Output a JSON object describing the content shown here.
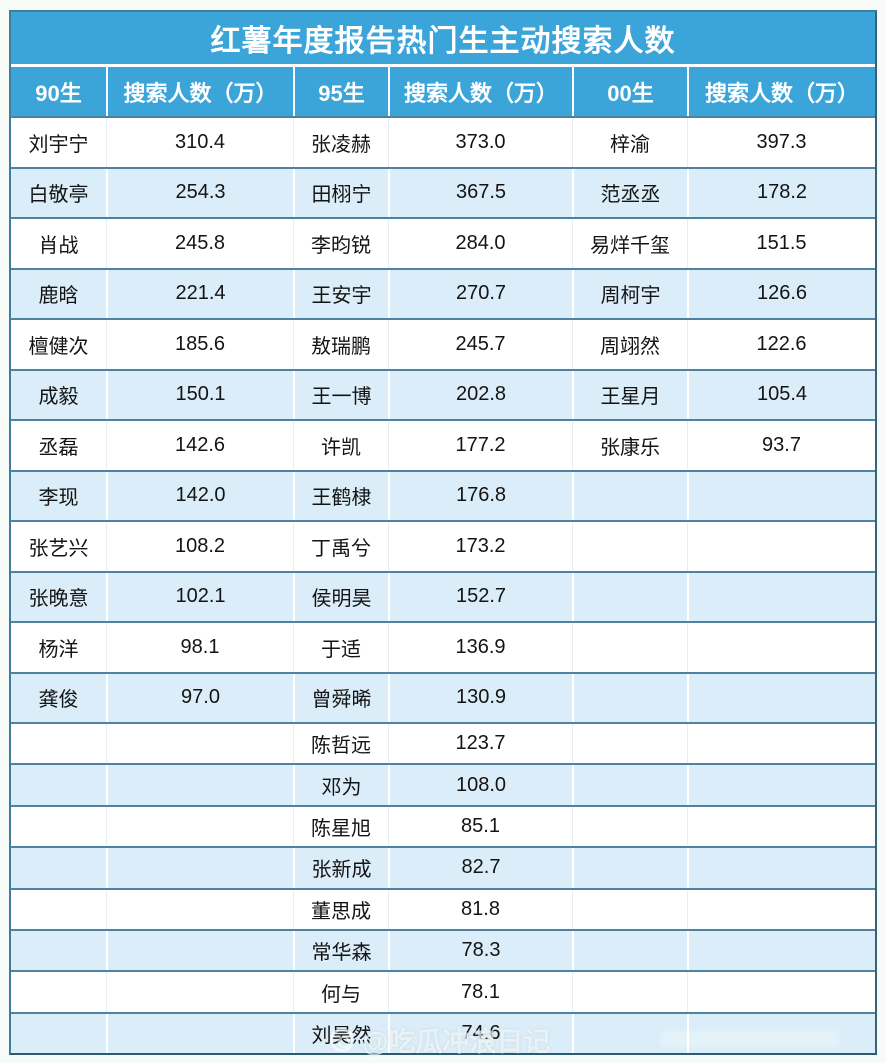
{
  "colors": {
    "header_blue": "#3BA4D9",
    "row_alt_blue": "#DAEDF8",
    "row_white": "#FFFFFF",
    "row_divider": "#4D82A0",
    "outer_border": "#35637A",
    "title_text": "#FFFFFF",
    "cell_text": "#141414"
  },
  "watermark": {
    "icon": "camera-circle-icon",
    "handle": "@吃瓜冲浪日记"
  },
  "chart_data": {
    "type": "table",
    "title": "红薯年度报告热门生主动搜索人数",
    "headers": [
      "90生",
      "搜索人数（万）",
      "95生",
      "搜索人数（万）",
      "00生",
      "搜索人数（万）"
    ],
    "unit": "万",
    "rows": [
      [
        "刘宇宁",
        "310.4",
        "张凌赫",
        "373.0",
        "梓渝",
        "397.3"
      ],
      [
        "白敬亭",
        "254.3",
        "田栩宁",
        "367.5",
        "范丞丞",
        "178.2"
      ],
      [
        "肖战",
        "245.8",
        "李昀锐",
        "284.0",
        "易烊千玺",
        "151.5"
      ],
      [
        "鹿晗",
        "221.4",
        "王安宇",
        "270.7",
        "周柯宇",
        "126.6"
      ],
      [
        "檀健次",
        "185.6",
        "敖瑞鹏",
        "245.7",
        "周翊然",
        "122.6"
      ],
      [
        "成毅",
        "150.1",
        "王一博",
        "202.8",
        "王星月",
        "105.4"
      ],
      [
        "丞磊",
        "142.6",
        "许凯",
        "177.2",
        "张康乐",
        "93.7"
      ],
      [
        "李现",
        "142.0",
        "王鹤棣",
        "176.8",
        "",
        ""
      ],
      [
        "张艺兴",
        "108.2",
        "丁禹兮",
        "173.2",
        "",
        ""
      ],
      [
        "张晚意",
        "102.1",
        "侯明昊",
        "152.7",
        "",
        ""
      ],
      [
        "杨洋",
        "98.1",
        "于适",
        "136.9",
        "",
        ""
      ],
      [
        "龚俊",
        "97.0",
        "曾舜晞",
        "130.9",
        "",
        ""
      ],
      [
        "",
        "",
        "陈哲远",
        "123.7",
        "",
        ""
      ],
      [
        "",
        "",
        "邓为",
        "108.0",
        "",
        ""
      ],
      [
        "",
        "",
        "陈星旭",
        "85.1",
        "",
        ""
      ],
      [
        "",
        "",
        "张新成",
        "82.7",
        "",
        ""
      ],
      [
        "",
        "",
        "董思成",
        "81.8",
        "",
        ""
      ],
      [
        "",
        "",
        "常华森",
        "78.3",
        "",
        ""
      ],
      [
        "",
        "",
        "何与",
        "78.1",
        "",
        ""
      ],
      [
        "",
        "",
        "刘昊然",
        "74.6",
        "",
        ""
      ]
    ],
    "series": [
      {
        "name": "90生",
        "unit": "万",
        "data": [
          {
            "label": "刘宇宁",
            "value": 310.4
          },
          {
            "label": "白敬亭",
            "value": 254.3
          },
          {
            "label": "肖战",
            "value": 245.8
          },
          {
            "label": "鹿晗",
            "value": 221.4
          },
          {
            "label": "檀健次",
            "value": 185.6
          },
          {
            "label": "成毅",
            "value": 150.1
          },
          {
            "label": "丞磊",
            "value": 142.6
          },
          {
            "label": "李现",
            "value": 142.0
          },
          {
            "label": "张艺兴",
            "value": 108.2
          },
          {
            "label": "张晚意",
            "value": 102.1
          },
          {
            "label": "杨洋",
            "value": 98.1
          },
          {
            "label": "龚俊",
            "value": 97.0
          }
        ]
      },
      {
        "name": "95生",
        "unit": "万",
        "data": [
          {
            "label": "张凌赫",
            "value": 373.0
          },
          {
            "label": "田栩宁",
            "value": 367.5
          },
          {
            "label": "李昀锐",
            "value": 284.0
          },
          {
            "label": "王安宇",
            "value": 270.7
          },
          {
            "label": "敖瑞鹏",
            "value": 245.7
          },
          {
            "label": "王一博",
            "value": 202.8
          },
          {
            "label": "许凯",
            "value": 177.2
          },
          {
            "label": "王鹤棣",
            "value": 176.8
          },
          {
            "label": "丁禹兮",
            "value": 173.2
          },
          {
            "label": "侯明昊",
            "value": 152.7
          },
          {
            "label": "于适",
            "value": 136.9
          },
          {
            "label": "曾舜晞",
            "value": 130.9
          },
          {
            "label": "陈哲远",
            "value": 123.7
          },
          {
            "label": "邓为",
            "value": 108.0
          },
          {
            "label": "陈星旭",
            "value": 85.1
          },
          {
            "label": "张新成",
            "value": 82.7
          },
          {
            "label": "董思成",
            "value": 81.8
          },
          {
            "label": "常华森",
            "value": 78.3
          },
          {
            "label": "何与",
            "value": 78.1
          },
          {
            "label": "刘昊然",
            "value": 74.6
          }
        ]
      },
      {
        "name": "00生",
        "unit": "万",
        "data": [
          {
            "label": "梓渝",
            "value": 397.3
          },
          {
            "label": "范丞丞",
            "value": 178.2
          },
          {
            "label": "易烊千玺",
            "value": 151.5
          },
          {
            "label": "周柯宇",
            "value": 126.6
          },
          {
            "label": "周翊然",
            "value": 122.6
          },
          {
            "label": "王星月",
            "value": 105.4
          },
          {
            "label": "张康乐",
            "value": 93.7
          }
        ]
      }
    ]
  }
}
